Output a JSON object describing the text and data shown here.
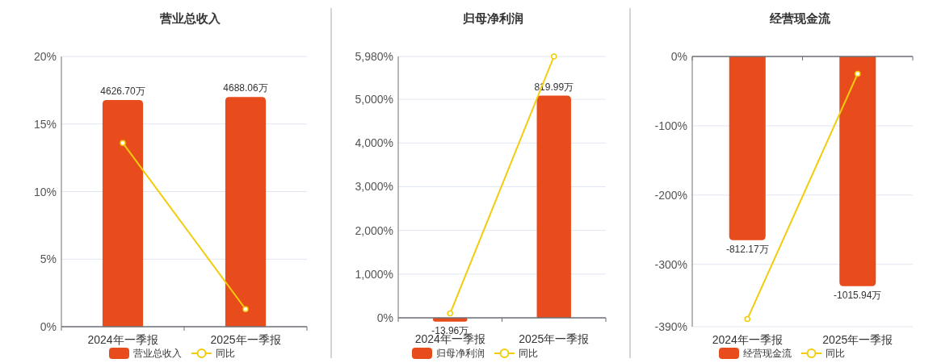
{
  "chart_data": [
    {
      "type": "bar",
      "title": "营业总收入",
      "categories": [
        "2024年一季报",
        "2025年一季报"
      ],
      "ylim": [
        0,
        20
      ],
      "yticks": [
        {
          "value": 0,
          "label": "0%"
        },
        {
          "value": 5,
          "label": "5%"
        },
        {
          "value": 10,
          "label": "10%"
        },
        {
          "value": 15,
          "label": "15%"
        },
        {
          "value": 20,
          "label": "20%"
        }
      ],
      "grid": "y",
      "legend": "bottom",
      "series": [
        {
          "name": "营业总收入",
          "color": "#e84c1c",
          "axis": "y2",
          "values": [
            4626.7,
            4688.06
          ],
          "value_labels": [
            "4626.70万",
            "4688.06万"
          ]
        },
        {
          "name": "同比",
          "type": "line",
          "color": "#f2cc0c",
          "marker": "circle",
          "values": [
            13.6,
            1.3
          ]
        }
      ]
    },
    {
      "type": "bar",
      "title": "归母净利润",
      "categories": [
        "2024年一季报",
        "2025年一季报"
      ],
      "ylim": [
        0,
        5980
      ],
      "yticks": [
        {
          "value": 0,
          "label": "0%"
        },
        {
          "value": 1000,
          "label": "1,000%"
        },
        {
          "value": 2000,
          "label": "2,000%"
        },
        {
          "value": 3000,
          "label": "3,000%"
        },
        {
          "value": 4000,
          "label": "4,000%"
        },
        {
          "value": 5000,
          "label": "5,000%"
        },
        {
          "value": 5980,
          "label": "5,980%"
        }
      ],
      "grid": "y",
      "legend": "bottom",
      "series": [
        {
          "name": "归母净利润",
          "color": "#e84c1c",
          "axis": "y2",
          "values": [
            -13.96,
            819.99
          ],
          "value_labels": [
            "-13.96万",
            "819.99万"
          ]
        },
        {
          "name": "同比",
          "type": "line",
          "color": "#f2cc0c",
          "marker": "circle",
          "values": [
            100,
            5980
          ]
        }
      ]
    },
    {
      "type": "bar",
      "title": "经营现金流",
      "categories": [
        "2024年一季报",
        "2025年一季报"
      ],
      "ylim": [
        -390,
        0
      ],
      "yticks": [
        {
          "value": 0,
          "label": "0%"
        },
        {
          "value": -100,
          "label": "-100%"
        },
        {
          "value": -200,
          "label": "-200%"
        },
        {
          "value": -300,
          "label": "-300%"
        },
        {
          "value": -390,
          "label": "-390%"
        }
      ],
      "grid": "y",
      "legend": "bottom",
      "series": [
        {
          "name": "经营现金流",
          "color": "#e84c1c",
          "axis": "y2",
          "values": [
            -812.17,
            -1015.94
          ],
          "value_labels": [
            "-812.17万",
            "-1015.94万"
          ]
        },
        {
          "name": "同比",
          "type": "line",
          "color": "#f2cc0c",
          "marker": "circle",
          "values": [
            -379,
            -25
          ]
        }
      ]
    }
  ]
}
